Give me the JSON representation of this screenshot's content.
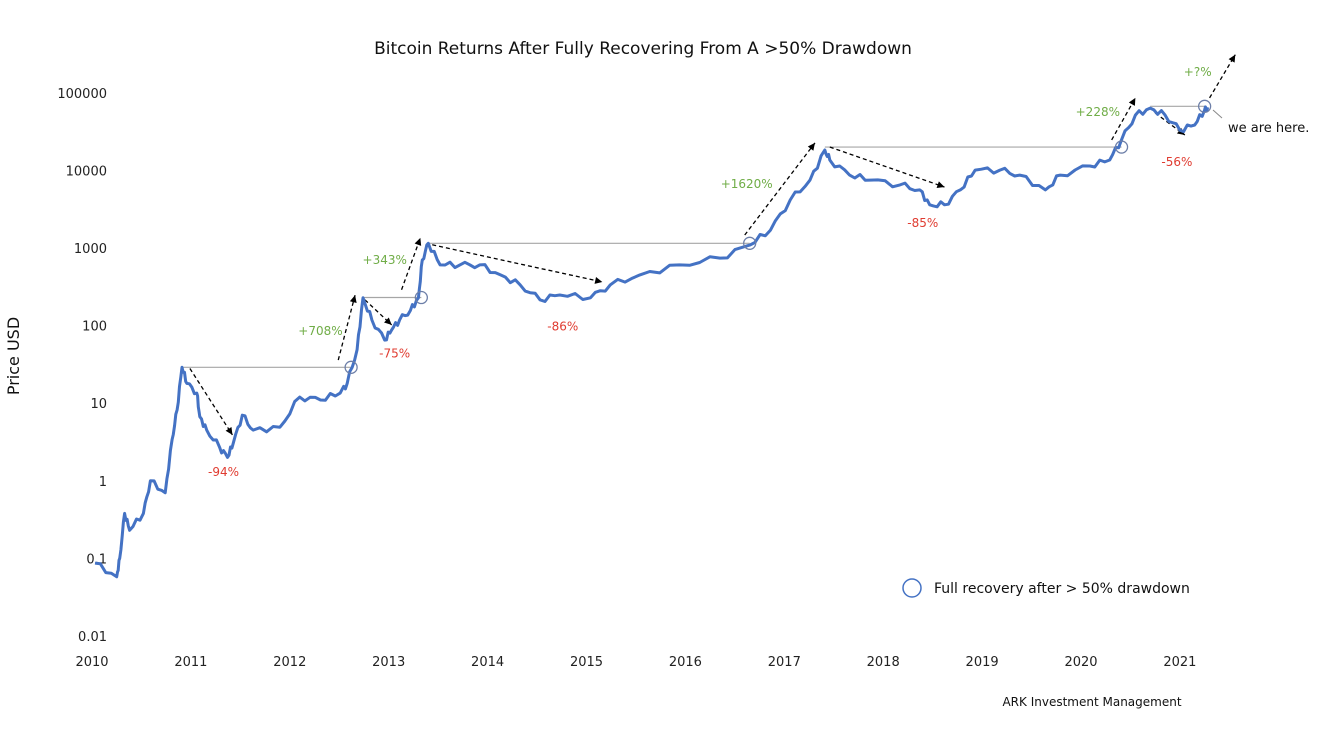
{
  "chart_data": {
    "type": "line",
    "title": "Bitcoin Returns After Fully Recovering From A >50% Drawdown",
    "ylabel": "Price USD",
    "xlabel": "",
    "yscale": "log",
    "ylim": [
      0.01,
      100000
    ],
    "xlim": [
      2010,
      2021.5
    ],
    "grid": false,
    "y_ticks": [
      "0.01",
      "0.1",
      "1",
      "10",
      "100",
      "1000",
      "10000",
      "100000"
    ],
    "x_ticks": [
      "2010",
      "2011",
      "2012",
      "2013",
      "2014",
      "2015",
      "2016",
      "2017",
      "2018",
      "2019",
      "2020",
      "2021"
    ],
    "series": [
      {
        "color": "#4472C4",
        "points": [
          [
            2010.03,
            0.087
          ],
          [
            2010.25,
            0.058
          ],
          [
            2010.28,
            0.1
          ],
          [
            2010.33,
            0.38
          ],
          [
            2010.38,
            0.23
          ],
          [
            2010.52,
            0.38
          ],
          [
            2010.59,
            1.0
          ],
          [
            2010.74,
            0.7
          ],
          [
            2010.81,
            3.4
          ],
          [
            2010.86,
            8.2
          ],
          [
            2010.91,
            29
          ],
          [
            2010.96,
            18
          ],
          [
            2011.06,
            13.5
          ],
          [
            2011.09,
            6.7
          ],
          [
            2011.16,
            4.5
          ],
          [
            2011.29,
            2.7
          ],
          [
            2011.37,
            2.0
          ],
          [
            2011.43,
            3.1
          ],
          [
            2011.52,
            7.0
          ],
          [
            2011.63,
            4.5
          ],
          [
            2011.9,
            4.9
          ],
          [
            2012.1,
            12
          ],
          [
            2012.31,
            11
          ],
          [
            2012.51,
            13.5
          ],
          [
            2012.58,
            18
          ],
          [
            2012.68,
            49
          ],
          [
            2012.74,
            228
          ],
          [
            2012.83,
            118
          ],
          [
            2012.96,
            65
          ],
          [
            2013.03,
            88
          ],
          [
            2013.11,
            118
          ],
          [
            2013.22,
            158
          ],
          [
            2013.3,
            228
          ],
          [
            2013.34,
            700
          ],
          [
            2013.4,
            1150
          ],
          [
            2013.52,
            605
          ],
          [
            2013.72,
            605
          ],
          [
            2013.92,
            605
          ],
          [
            2014.13,
            450
          ],
          [
            2014.33,
            335
          ],
          [
            2014.53,
            215
          ],
          [
            2014.73,
            248
          ],
          [
            2015.04,
            228
          ],
          [
            2015.24,
            335
          ],
          [
            2015.54,
            450
          ],
          [
            2015.94,
            605
          ],
          [
            2016.35,
            740
          ],
          [
            2016.65,
            1090
          ],
          [
            2016.86,
            1700
          ],
          [
            2017.06,
            4150
          ],
          [
            2017.26,
            7500
          ],
          [
            2017.41,
            18300
          ],
          [
            2017.46,
            13600
          ],
          [
            2017.66,
            8700
          ],
          [
            2017.87,
            7500
          ],
          [
            2018.17,
            6500
          ],
          [
            2018.37,
            5600
          ],
          [
            2018.47,
            3600
          ],
          [
            2018.62,
            3600
          ],
          [
            2018.78,
            5600
          ],
          [
            2018.93,
            10100
          ],
          [
            2019.18,
            10100
          ],
          [
            2019.38,
            8700
          ],
          [
            2019.64,
            5600
          ],
          [
            2019.79,
            8700
          ],
          [
            2020.09,
            11400
          ],
          [
            2020.29,
            13600
          ],
          [
            2020.41,
            24700
          ],
          [
            2020.55,
            51600
          ],
          [
            2020.7,
            63500
          ],
          [
            2020.85,
            51600
          ],
          [
            2021.0,
            33000
          ],
          [
            2021.15,
            38500
          ],
          [
            2021.25,
            60000
          ],
          [
            2021.28,
            65000
          ]
        ]
      }
    ],
    "ath_lines": [
      {
        "price": 29,
        "from": 2010.91,
        "to": 2012.62
      },
      {
        "price": 230,
        "from": 2012.74,
        "to": 2013.33
      },
      {
        "price": 1150,
        "from": 2013.4,
        "to": 2016.65
      },
      {
        "price": 20000,
        "from": 2017.41,
        "to": 2020.41
      },
      {
        "price": 67000,
        "from": 2020.7,
        "to": 2021.25
      }
    ],
    "recovery_points": [
      [
        2012.62,
        29
      ],
      [
        2013.33,
        230
      ],
      [
        2016.65,
        1150
      ],
      [
        2020.41,
        20000
      ],
      [
        2021.25,
        67000
      ]
    ],
    "annotations": [
      {
        "text": "+708%",
        "kind": "gain",
        "from": [
          2012.49,
          36
        ],
        "to": [
          2012.66,
          247
        ],
        "at": [
          2012.31,
          85
        ]
      },
      {
        "text": "+343%",
        "kind": "gain",
        "from": [
          2013.13,
          290
        ],
        "to": [
          2013.32,
          1350
        ],
        "at": [
          2012.96,
          700
        ]
      },
      {
        "text": "+1620%",
        "kind": "gain",
        "from": [
          2016.6,
          1470
        ],
        "to": [
          2017.31,
          22600
        ],
        "at": [
          2016.62,
          6650
        ]
      },
      {
        "text": "+228%",
        "kind": "gain",
        "from": [
          2020.31,
          24700
        ],
        "to": [
          2020.55,
          86000
        ],
        "at": [
          2020.17,
          56800
        ]
      },
      {
        "text": "+?%",
        "kind": "gain",
        "from": [
          2021.3,
          86000
        ],
        "to": [
          2021.56,
          310000
        ],
        "at": [
          2021.18,
          185000
        ]
      },
      {
        "text": "-94%",
        "kind": "loss",
        "from": [
          2010.99,
          28
        ],
        "to": [
          2011.42,
          3.9
        ],
        "at": [
          2011.33,
          1.3
        ]
      },
      {
        "text": "-75%",
        "kind": "loss",
        "from": [
          2012.76,
          215
        ],
        "to": [
          2013.03,
          102
        ],
        "at": [
          2013.06,
          44
        ]
      },
      {
        "text": "-86%",
        "kind": "loss",
        "from": [
          2013.44,
          1100
        ],
        "to": [
          2015.16,
          365
        ],
        "at": [
          2014.76,
          98
        ]
      },
      {
        "text": "-85%",
        "kind": "loss",
        "from": [
          2017.46,
          20000
        ],
        "to": [
          2018.62,
          6100
        ],
        "at": [
          2018.4,
          2100
        ]
      },
      {
        "text": "-56%",
        "kind": "loss",
        "from": [
          2020.75,
          55000
        ],
        "to": [
          2021.05,
          28600
        ],
        "at": [
          2020.97,
          12900
        ]
      }
    ],
    "callout": "we are here.",
    "legend": {
      "label": "Full recovery after > 50% drawdown",
      "position": "bottom-right"
    },
    "source": "ARK Investment Management",
    "colors": {
      "line": "#4472C4",
      "gain": "#70AD47",
      "loss": "#E03C31",
      "ath": "#A6A6A6",
      "circle": "#4472C4",
      "arrow": "#000000"
    }
  }
}
